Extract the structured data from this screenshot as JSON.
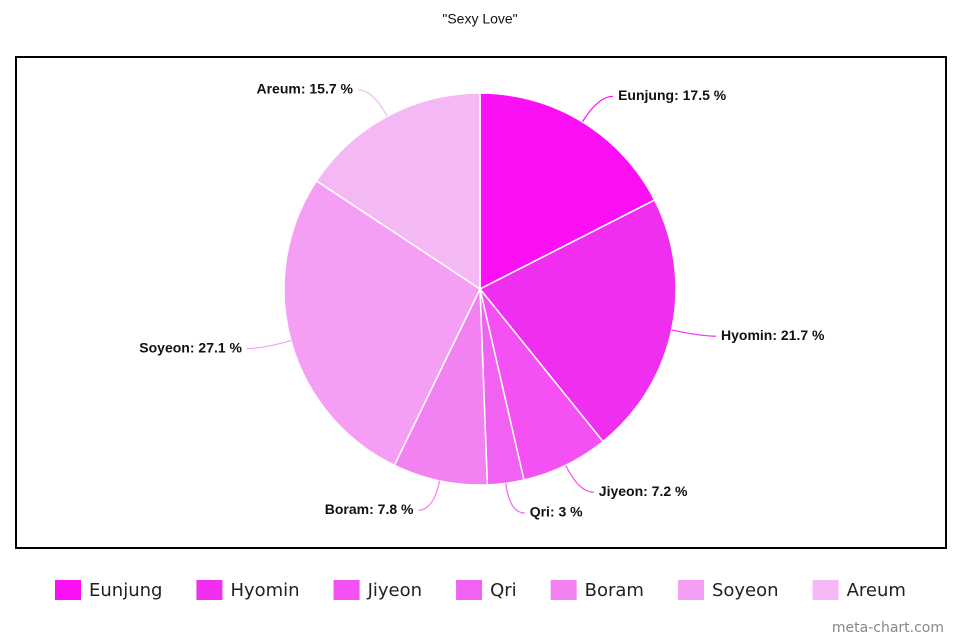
{
  "chart_data": {
    "type": "pie",
    "title": "\"Sexy Love\"",
    "categories": [
      "Eunjung",
      "Hyomin",
      "Jiyeon",
      "Qri",
      "Boram",
      "Soyeon",
      "Areum"
    ],
    "values": [
      17.5,
      21.7,
      7.2,
      3,
      7.8,
      27.1,
      15.7
    ],
    "value_labels": [
      "Eunjung: 17.5 %",
      "Hyomin: 21.7 %",
      "Jiyeon: 7.2 %",
      "Qri: 3 %",
      "Boram: 7.8 %",
      "Soyeon: 27.1 %",
      "Areum: 15.7 %"
    ],
    "colors": [
      "#fb0ff4",
      "#f02ef0",
      "#f450f4",
      "#f262f2",
      "#f282f2",
      "#f49ef4",
      "#f4b9f4"
    ],
    "legend": "bottom",
    "watermark": "meta-chart.com"
  }
}
